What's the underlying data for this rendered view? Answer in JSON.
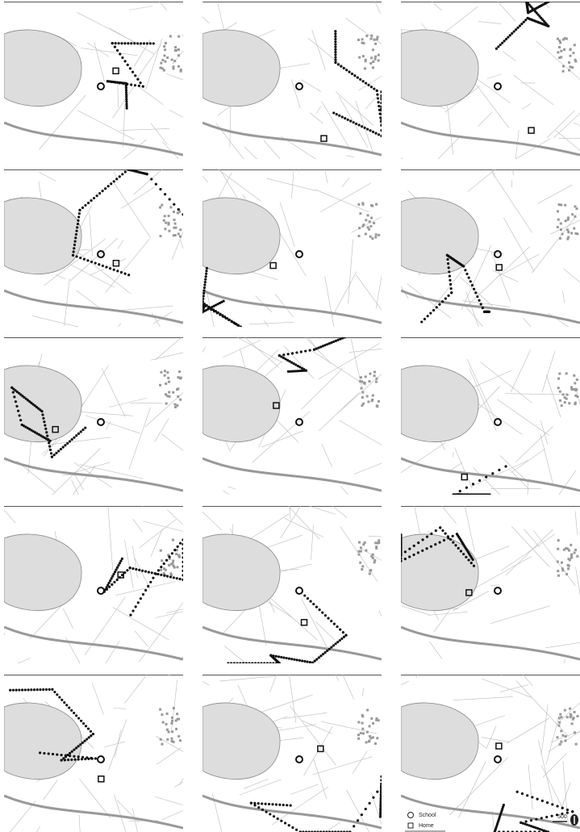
{
  "legend": {
    "school": "School",
    "home": "Home"
  },
  "scale": {
    "label": "500"
  }
}
